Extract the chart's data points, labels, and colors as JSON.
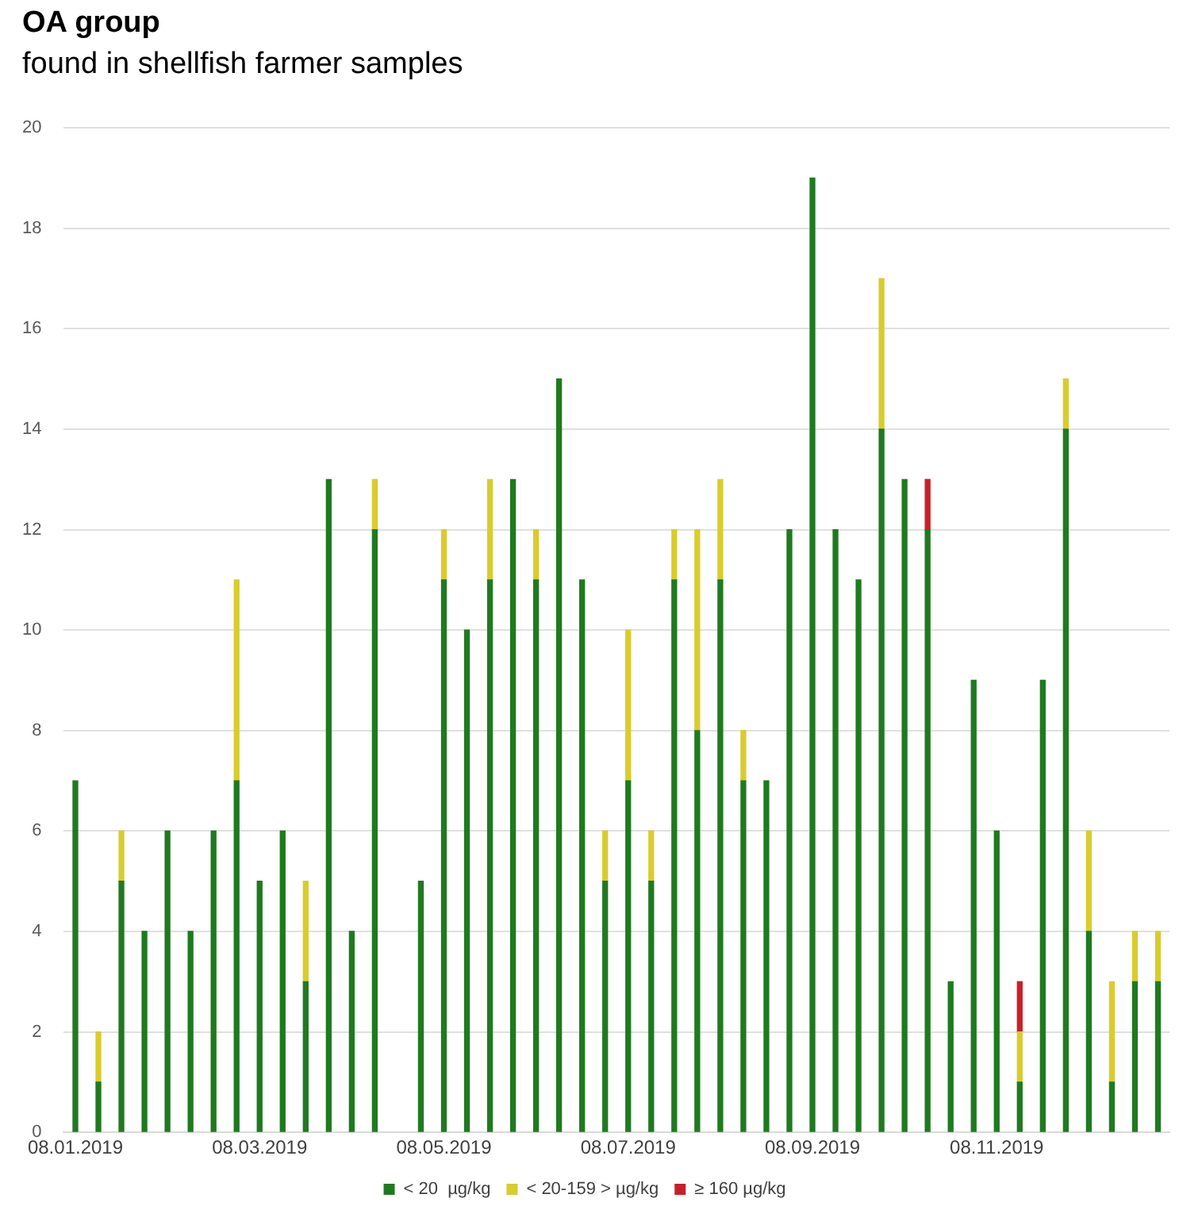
{
  "chart_data": {
    "type": "bar",
    "title": "OA group",
    "subtitle": "found in shellfish farmer samples",
    "categories": [
      "08.01.2019",
      null,
      null,
      null,
      null,
      null,
      null,
      null,
      "08.03.2019",
      null,
      null,
      null,
      null,
      null,
      null,
      null,
      "08.05.2019",
      null,
      null,
      null,
      null,
      null,
      null,
      null,
      "08.07.2019",
      null,
      null,
      null,
      null,
      null,
      null,
      null,
      "08.09.2019",
      null,
      null,
      null,
      null,
      null,
      null,
      null,
      "08.11.2019",
      null,
      null,
      null,
      null,
      null,
      null,
      null
    ],
    "stacked": true,
    "series": [
      {
        "name": "< 20  µg/kg",
        "color": "#1f7a1f",
        "values": [
          7,
          1,
          5,
          4,
          6,
          4,
          6,
          7,
          5,
          6,
          3,
          13,
          4,
          12,
          null,
          5,
          11,
          10,
          11,
          13,
          11,
          15,
          11,
          5,
          7,
          5,
          11,
          8,
          11,
          7,
          7,
          12,
          19,
          12,
          11,
          14,
          13,
          12,
          3,
          9,
          6,
          1,
          9,
          14,
          4,
          1,
          3,
          3
        ]
      },
      {
        "name": "< 20-159 > µg/kg",
        "color": "#d9cc2e",
        "values": [
          null,
          1,
          1,
          null,
          null,
          null,
          null,
          4,
          null,
          null,
          2,
          null,
          null,
          1,
          null,
          null,
          1,
          null,
          2,
          null,
          1,
          null,
          null,
          1,
          3,
          1,
          1,
          4,
          2,
          1,
          null,
          null,
          null,
          null,
          null,
          3,
          null,
          null,
          null,
          null,
          null,
          1,
          null,
          1,
          2,
          2,
          1,
          1
        ]
      },
      {
        "name": "≥ 160 µg/kg",
        "color": "#c8202a",
        "values": [
          null,
          null,
          null,
          null,
          null,
          null,
          null,
          null,
          null,
          null,
          null,
          null,
          null,
          null,
          null,
          null,
          null,
          null,
          null,
          null,
          null,
          null,
          null,
          null,
          null,
          null,
          null,
          null,
          null,
          null,
          null,
          null,
          null,
          null,
          null,
          null,
          null,
          1,
          null,
          null,
          null,
          1,
          null,
          null,
          null,
          null,
          null,
          null
        ]
      }
    ],
    "ylim": [
      0,
      20
    ],
    "yticks": [
      0,
      2,
      4,
      6,
      8,
      10,
      12,
      14,
      16,
      18,
      20
    ],
    "grid": "y",
    "legend": "bottom"
  }
}
